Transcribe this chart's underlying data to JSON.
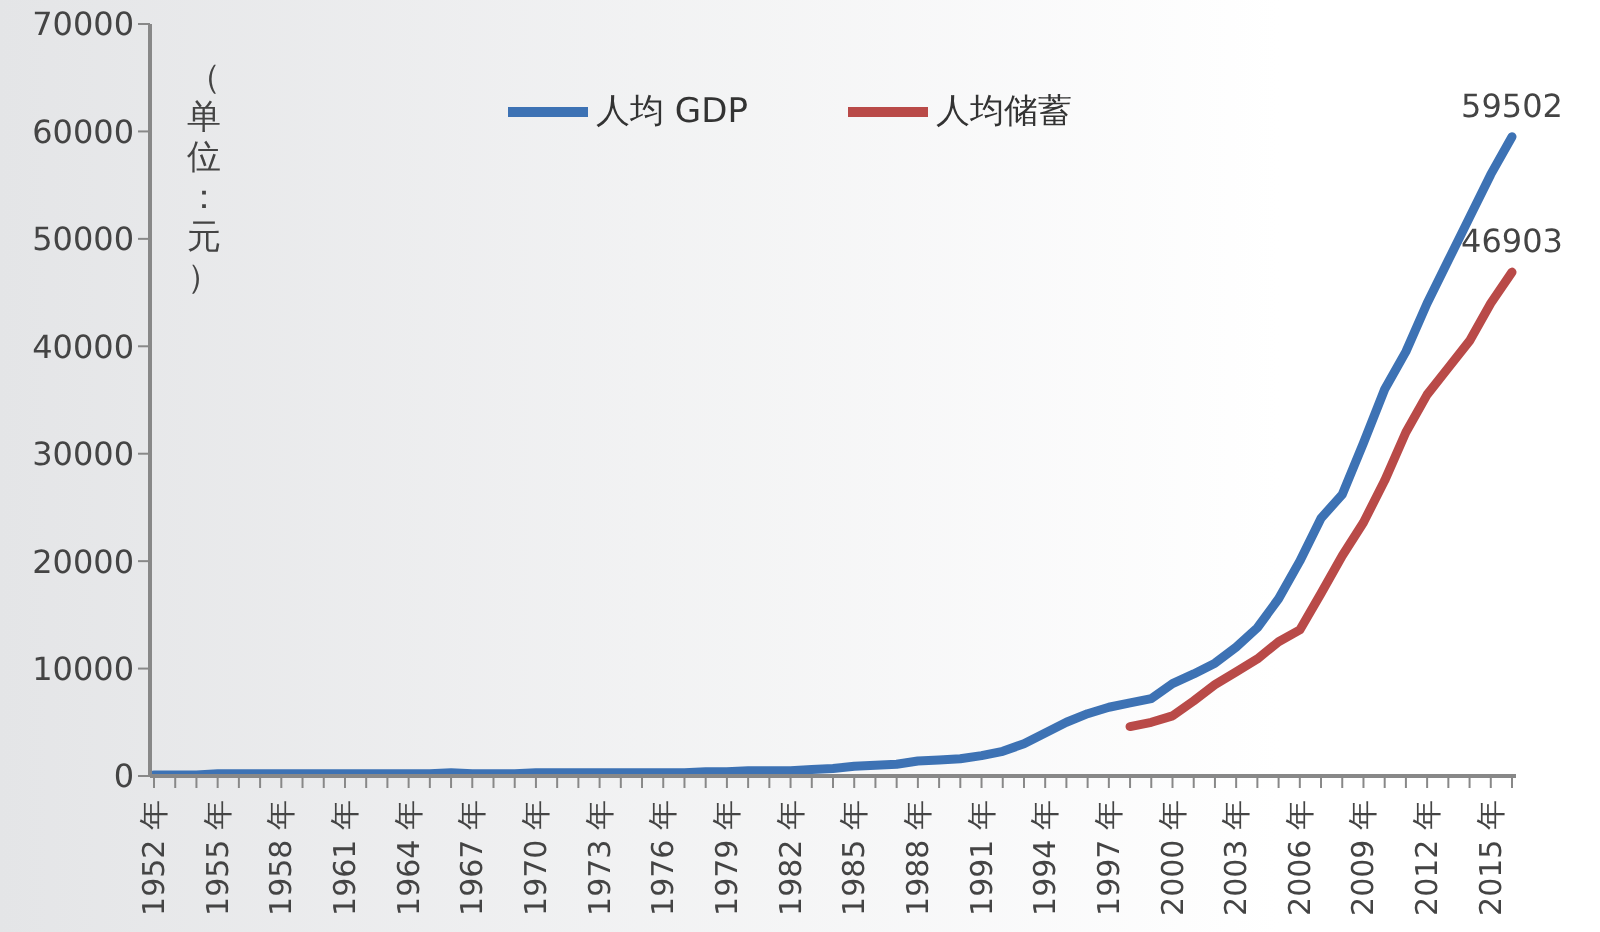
{
  "chart_data": {
    "type": "line",
    "ylabel": "（单位：元）",
    "categories": [
      "1952 年",
      null,
      null,
      "1955 年",
      null,
      null,
      "1958 年",
      null,
      null,
      "1961 年",
      null,
      null,
      "1964 年",
      null,
      null,
      "1967 年",
      null,
      null,
      "1970 年",
      null,
      null,
      "1973 年",
      null,
      null,
      "1976 年",
      null,
      null,
      "1979 年",
      null,
      null,
      "1982 年",
      null,
      null,
      "1985 年",
      null,
      null,
      "1988 年",
      null,
      null,
      "1991 年",
      null,
      null,
      "1994 年",
      null,
      null,
      "1997 年",
      null,
      null,
      "2000 年",
      null,
      null,
      "2003 年",
      null,
      null,
      "2006 年",
      null,
      null,
      "2009 年",
      null,
      null,
      "2012 年",
      null,
      null,
      "2015 年",
      null
    ],
    "series": [
      {
        "name": "人均 GDP",
        "color": "#3d72b4",
        "values": [
          100,
          100,
          100,
          200,
          200,
          200,
          200,
          200,
          200,
          200,
          200,
          200,
          200,
          200,
          300,
          200,
          200,
          200,
          300,
          300,
          300,
          300,
          300,
          300,
          300,
          300,
          400,
          400,
          500,
          500,
          500,
          600,
          700,
          900,
          1000,
          1100,
          1400,
          1500,
          1600,
          1900,
          2300,
          3000,
          4000,
          5000,
          5800,
          6400,
          6800,
          7200,
          8600,
          9500,
          10500,
          12000,
          13800,
          16500,
          20000,
          24000,
          26200,
          31000,
          36000,
          39500,
          44000,
          48000,
          52000,
          56000,
          59502
        ],
        "value_labels": [
          null,
          null,
          null,
          null,
          null,
          null,
          null,
          null,
          null,
          null,
          null,
          null,
          null,
          null,
          null,
          null,
          null,
          null,
          null,
          null,
          null,
          null,
          null,
          null,
          null,
          null,
          null,
          null,
          null,
          null,
          null,
          null,
          null,
          null,
          null,
          null,
          null,
          null,
          null,
          null,
          null,
          null,
          null,
          null,
          null,
          null,
          null,
          null,
          null,
          null,
          null,
          null,
          null,
          null,
          null,
          null,
          null,
          null,
          null,
          null,
          null,
          null,
          null,
          null,
          "59502"
        ]
      },
      {
        "name": "人均储蓄",
        "color": "#b94a48",
        "values": [
          null,
          null,
          null,
          null,
          null,
          null,
          null,
          null,
          null,
          null,
          null,
          null,
          null,
          null,
          null,
          null,
          null,
          null,
          null,
          null,
          null,
          null,
          null,
          null,
          null,
          null,
          null,
          null,
          null,
          null,
          null,
          null,
          null,
          null,
          null,
          null,
          null,
          null,
          null,
          null,
          null,
          null,
          null,
          null,
          null,
          null,
          4600,
          5000,
          5600,
          7000,
          8500,
          9700,
          10900,
          12500,
          13600,
          17000,
          20500,
          23600,
          27500,
          32000,
          35500,
          38000,
          40500,
          44000,
          46903
        ],
        "value_labels": [
          null,
          null,
          null,
          null,
          null,
          null,
          null,
          null,
          null,
          null,
          null,
          null,
          null,
          null,
          null,
          null,
          null,
          null,
          null,
          null,
          null,
          null,
          null,
          null,
          null,
          null,
          null,
          null,
          null,
          null,
          null,
          null,
          null,
          null,
          null,
          null,
          null,
          null,
          null,
          null,
          null,
          null,
          null,
          null,
          null,
          null,
          null,
          null,
          null,
          null,
          null,
          null,
          null,
          null,
          null,
          null,
          null,
          null,
          null,
          null,
          null,
          null,
          null,
          null,
          "46903"
        ]
      }
    ],
    "ylim": [
      0,
      70000
    ],
    "yticks": [
      0,
      10000,
      20000,
      30000,
      40000,
      50000,
      60000,
      70000
    ],
    "grid": false,
    "legend": "top",
    "marker": "none",
    "line_style": "solid"
  }
}
